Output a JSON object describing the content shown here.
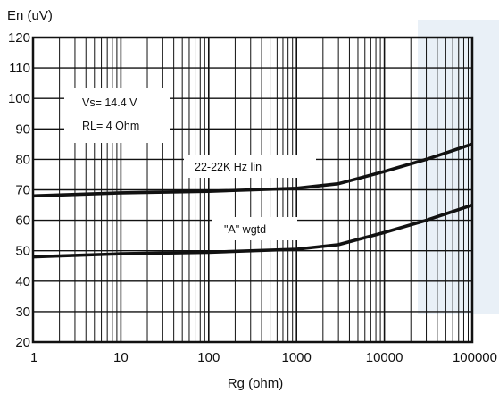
{
  "chart_data": {
    "type": "line",
    "xscale": "log",
    "xlim": [
      1,
      100000
    ],
    "ylim": [
      20,
      120
    ],
    "xlabel": "Rg (ohm)",
    "ylabel": "En (uV)",
    "x_ticks": [
      "1",
      "10",
      "100",
      "1000",
      "10000",
      "100000"
    ],
    "y_ticks": [
      "20",
      "30",
      "40",
      "50",
      "60",
      "70",
      "80",
      "90",
      "100",
      "110",
      "120"
    ],
    "grid": true,
    "conditions": [
      "Vs= 14.4 V",
      "RL= 4 Ohm"
    ],
    "series": [
      {
        "name": "22-22K Hz lin",
        "x": [
          1,
          10,
          100,
          1000,
          3000,
          10000,
          30000,
          100000
        ],
        "y": [
          68,
          69,
          69.5,
          70.5,
          72,
          76,
          80,
          85
        ]
      },
      {
        "name": "\"A\" wgtd",
        "x": [
          1,
          10,
          100,
          1000,
          3000,
          10000,
          30000,
          100000
        ],
        "y": [
          48,
          49,
          49.5,
          50.5,
          52,
          56,
          60,
          65
        ]
      }
    ],
    "colors": {
      "line": "#111111",
      "grid": "#111111",
      "background_band": "#e9f0f7"
    }
  }
}
